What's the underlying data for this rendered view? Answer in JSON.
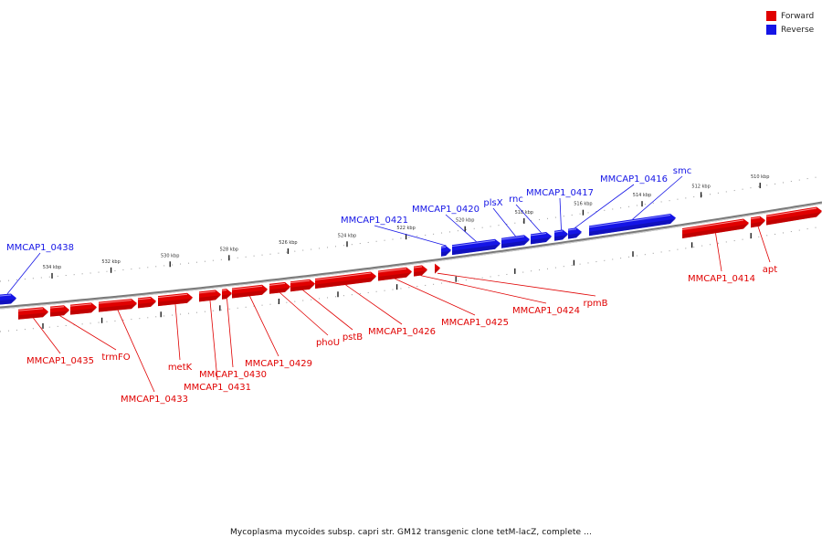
{
  "legend": {
    "forward_label": "Forward",
    "reverse_label": "Reverse",
    "forward_color": "#e00000",
    "reverse_color": "#1515e6"
  },
  "caption": "Mycoplasma mycoides subsp. capri str. GM12 transgenic clone tetM-lacZ, complete ...",
  "ticks": [
    {
      "kbp": 534,
      "label": "534 kbp"
    },
    {
      "kbp": 532,
      "label": "532 kbp"
    },
    {
      "kbp": 530,
      "label": "530 kbp"
    },
    {
      "kbp": 528,
      "label": "528 kbp"
    },
    {
      "kbp": 526,
      "label": "526 kbp"
    },
    {
      "kbp": 524,
      "label": "524 kbp"
    },
    {
      "kbp": 522,
      "label": "522 kbp"
    },
    {
      "kbp": 520,
      "label": "520 kbp"
    },
    {
      "kbp": 518,
      "label": "518 kbp"
    },
    {
      "kbp": 516,
      "label": "516 kbp"
    },
    {
      "kbp": 514,
      "label": "514 kbp"
    },
    {
      "kbp": 512,
      "label": "512 kbp"
    },
    {
      "kbp": 510,
      "label": "510 kbp"
    }
  ],
  "genes": [
    {
      "name": "MMCAP1_0438",
      "strand": "reverse"
    },
    {
      "name": "MMCAP1_0421",
      "strand": "reverse"
    },
    {
      "name": "MMCAP1_0420",
      "strand": "reverse"
    },
    {
      "name": "plsX",
      "strand": "reverse"
    },
    {
      "name": "rnc",
      "strand": "reverse"
    },
    {
      "name": "MMCAP1_0417",
      "strand": "reverse"
    },
    {
      "name": "MMCAP1_0416",
      "strand": "reverse"
    },
    {
      "name": "smc",
      "strand": "reverse"
    },
    {
      "name": "MMCAP1_0435",
      "strand": "forward"
    },
    {
      "name": "trmFO",
      "strand": "forward"
    },
    {
      "name": "MMCAP1_0433",
      "strand": "forward"
    },
    {
      "name": "metK",
      "strand": "forward"
    },
    {
      "name": "MMCAP1_0431",
      "strand": "forward"
    },
    {
      "name": "MMCAP1_0430",
      "strand": "forward"
    },
    {
      "name": "MMCAP1_0429",
      "strand": "forward"
    },
    {
      "name": "phoU",
      "strand": "forward"
    },
    {
      "name": "pstB",
      "strand": "forward"
    },
    {
      "name": "MMCAP1_0426",
      "strand": "forward"
    },
    {
      "name": "MMCAP1_0425",
      "strand": "forward"
    },
    {
      "name": "MMCAP1_0424",
      "strand": "forward"
    },
    {
      "name": "rpmB",
      "strand": "forward"
    },
    {
      "name": "MMCAP1_0414",
      "strand": "forward"
    },
    {
      "name": "apt",
      "strand": "forward"
    }
  ]
}
